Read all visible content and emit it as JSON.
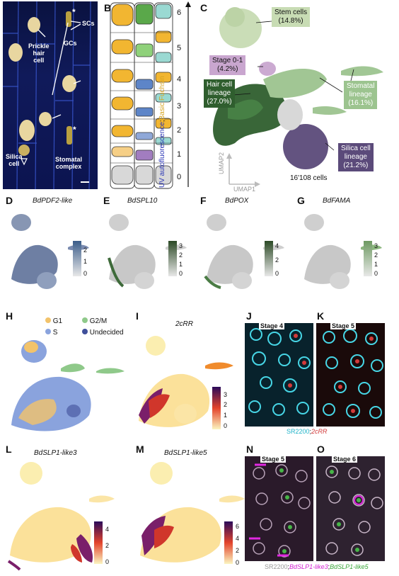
{
  "panels": [
    "A",
    "B",
    "C",
    "D",
    "E",
    "F",
    "G",
    "H",
    "I",
    "J",
    "K",
    "L",
    "M",
    "N",
    "O"
  ],
  "panel_a": {
    "labels": {
      "prickle": "Prickle\nhair\ncell",
      "scs": "SCs",
      "gcs": "GCs",
      "silica": "Silica\ncell",
      "stomatal": "Stomatal\ncomplex"
    },
    "star": "*"
  },
  "panel_b": {
    "stages": [
      "6",
      "5",
      "4",
      "3",
      "2",
      "1",
      "0"
    ],
    "axis_label_blue": "UV autofluorescence",
    "axis_label_sep": ";",
    "axis_label_yellow": "Basic Fuchsin"
  },
  "panel_c": {
    "stem": "Stem cells\n(14.8%)",
    "stage01": "Stage 0-1\n(4.2%)",
    "hair": "Hair cell\nlineage\n(27.0%)",
    "stomatal": "Stomatal\nlineage\n(16.1%)",
    "silica": "Silica cell\nlineage\n(21.2%)",
    "cells": "16'108 cells",
    "umap1": "UMAP1",
    "umap2": "UMAP2",
    "colors": {
      "stem": "#c8dcb4",
      "stage01": "#c9a6cf",
      "hair": "#2f5e2e",
      "stomatal": "#9cc48f",
      "silica": "#5b4a7a"
    }
  },
  "genes": {
    "d": {
      "name": "BdPDF2-like",
      "ticks": [
        "2",
        "1",
        "0"
      ]
    },
    "e": {
      "name": "BdSPL10",
      "ticks": [
        "3",
        "2",
        "1",
        "0"
      ]
    },
    "f": {
      "name": "BdPOX",
      "ticks": [
        "4",
        "2",
        "0"
      ]
    },
    "g": {
      "name": "BdFAMA",
      "ticks": [
        "3",
        "2",
        "1",
        "0"
      ]
    },
    "i": {
      "name": "2cRR",
      "ticks": [
        "3",
        "2",
        "1",
        "0"
      ]
    },
    "l": {
      "name": "BdSLP1-like3",
      "ticks": [
        "4",
        "2",
        "0"
      ]
    },
    "m": {
      "name": "BdSLP1-like5",
      "ticks": [
        "6",
        "4",
        "2",
        "0"
      ]
    }
  },
  "panel_h": {
    "legend": [
      {
        "label": "G1",
        "color": "#f2c36b"
      },
      {
        "label": "G2/M",
        "color": "#8fc98a"
      },
      {
        "label": "S",
        "color": "#8aa3dd"
      },
      {
        "label": "Undecided",
        "color": "#3f4f9a"
      }
    ]
  },
  "panel_jk": {
    "j_title": "Stage 4",
    "k_title": "Stage 5",
    "caption_a": "SR2200",
    "caption_sep": ";",
    "caption_b": "2cRR"
  },
  "panel_no": {
    "n_title": "Stage 5",
    "o_title": "Stage 6",
    "caption_a": "SR2200",
    "caption_sep1": ";",
    "caption_b": "BdSLP1-like3",
    "caption_sep2": ";",
    "caption_c": "BdSLP1-like5"
  }
}
